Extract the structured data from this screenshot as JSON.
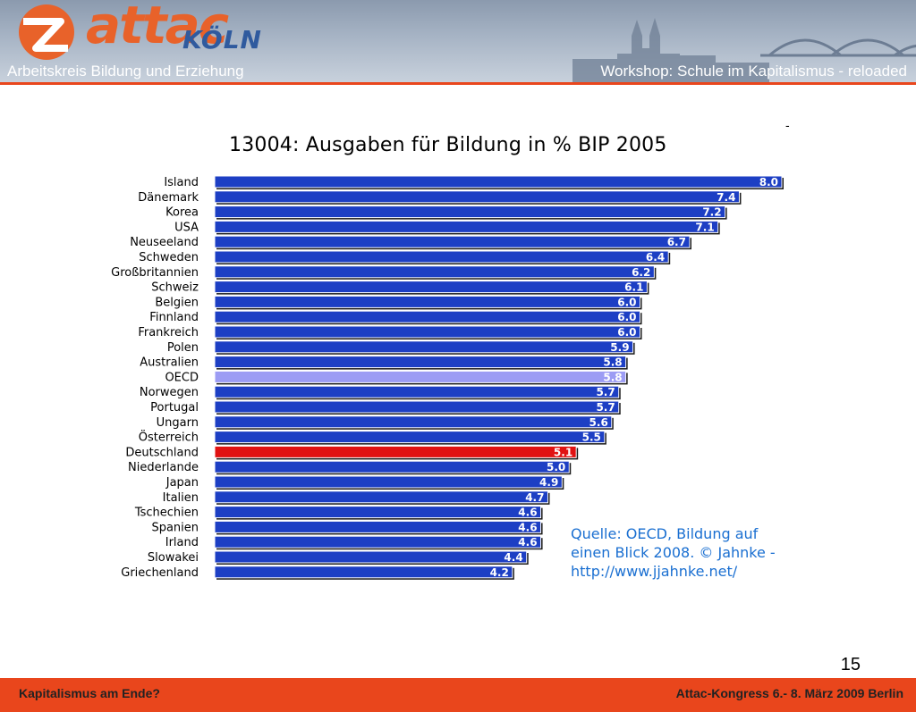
{
  "header": {
    "logo_text": "attac",
    "logo_city": "KÖLN",
    "left": "Arbeitskreis Bildung und Erziehung",
    "right": "Workshop: Schule im Kapitalismus - reloaded"
  },
  "dash": "-",
  "source_lines": [
    "Quelle: OECD, Bildung auf",
    "einen Blick 2008. © Jahnke -",
    "http://www.jjahnke.net/"
  ],
  "page_number": "15",
  "footer": {
    "left": "Kapitalismus am Ende?",
    "right": "Attac-Kongress 6.- 8. März 2009 Berlin"
  },
  "colors": {
    "bar": "#1d3fc4",
    "bar_oecd": "#9c9cf4",
    "bar_germany": "#e01212",
    "accent": "#e9461c",
    "source_text": "#1a6fd1"
  },
  "chart_data": {
    "type": "bar",
    "orientation": "horizontal",
    "title": "13004: Ausgaben für Bildung in % BIP 2005",
    "categories": [
      "Island",
      "Dänemark",
      "Korea",
      "USA",
      "Neuseeland",
      "Schweden",
      "Großbritannien",
      "Schweiz",
      "Belgien",
      "Finnland",
      "Frankreich",
      "Polen",
      "Australien",
      "OECD",
      "Norwegen",
      "Portugal",
      "Ungarn",
      "Österreich",
      "Deutschland",
      "Niederlande",
      "Japan",
      "Italien",
      "Tschechien",
      "Spanien",
      "Irland",
      "Slowakei",
      "Griechenland"
    ],
    "values": [
      8.0,
      7.4,
      7.2,
      7.1,
      6.7,
      6.4,
      6.2,
      6.1,
      6.0,
      6.0,
      6.0,
      5.9,
      5.8,
      5.8,
      5.7,
      5.7,
      5.6,
      5.5,
      5.1,
      5.0,
      4.9,
      4.7,
      4.6,
      4.6,
      4.6,
      4.4,
      4.2
    ],
    "value_labels": [
      "8.0",
      "7.4",
      "7.2",
      "7.1",
      "6.7",
      "6.4",
      "6.2",
      "6.1",
      "6.0",
      "6.0",
      "6.0",
      "5.9",
      "5.8",
      "5.8",
      "5.7",
      "5.7",
      "5.6",
      "5.5",
      "5.1",
      "5.0",
      "4.9",
      "4.7",
      "4.6",
      "4.6",
      "4.6",
      "4.4",
      "4.2"
    ],
    "highlight": {
      "OECD": "bar_oecd",
      "Deutschland": "bar_germany"
    },
    "xlim": [
      0,
      8.0
    ],
    "grid": false,
    "legend": "none",
    "xlabel": "",
    "ylabel": ""
  }
}
